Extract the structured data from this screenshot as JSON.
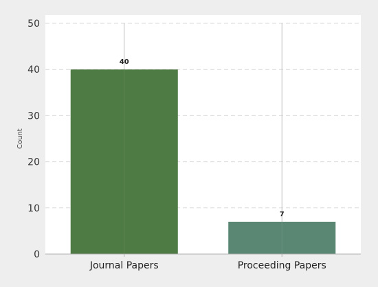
{
  "chart_data": {
    "type": "bar",
    "title": "",
    "xlabel": "",
    "ylabel": "Count",
    "categories": [
      "Journal Papers",
      "Proceeding Papers"
    ],
    "values": [
      40,
      7
    ],
    "data_labels": [
      "40",
      "7"
    ],
    "bar_colors": [
      "#4e7a43",
      "#5a8774"
    ],
    "error_line_top": [
      50,
      50
    ],
    "ylim": [
      0,
      50
    ],
    "yticks": [
      0,
      10,
      20,
      30,
      40,
      50
    ],
    "grid": true,
    "legend": "none"
  }
}
